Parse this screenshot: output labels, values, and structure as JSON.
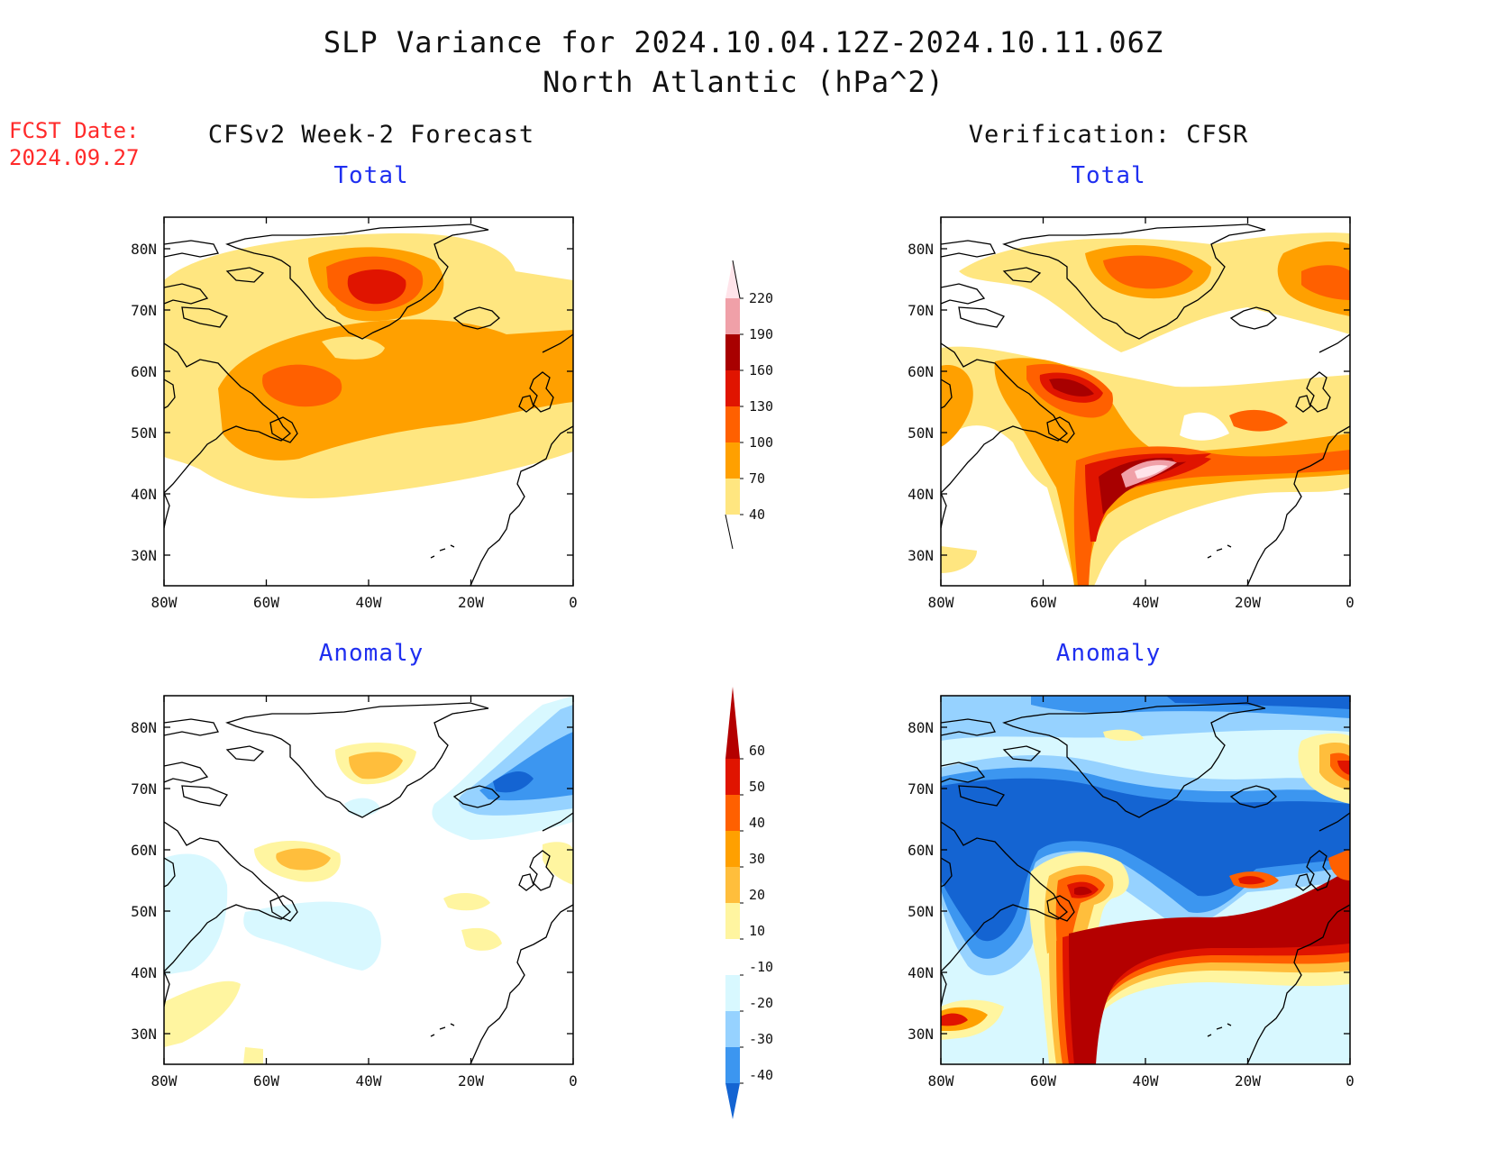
{
  "header": {
    "title": "SLP Variance for 2024.10.04.12Z-2024.10.11.06Z",
    "subtitle": "North Atlantic (hPa^2)"
  },
  "fcst": {
    "label": "FCST Date:",
    "date": "2024.09.27"
  },
  "columns": {
    "left": "CFSv2 Week-2 Forecast",
    "right": "Verification: CFSR"
  },
  "panels": {
    "forecast_total": "Total",
    "forecast_anomaly": "Anomaly",
    "verif_total": "Total",
    "verif_anomaly": "Anomaly"
  },
  "axes": {
    "lat_labels": [
      "80N",
      "70N",
      "60N",
      "50N",
      "40N",
      "30N"
    ],
    "lon_labels": [
      "80W",
      "60W",
      "40W",
      "20W",
      "0"
    ]
  },
  "colorbars": {
    "total": {
      "levels": [
        "40",
        "70",
        "100",
        "130",
        "160",
        "190",
        "220"
      ],
      "colors": [
        "#ffe680",
        "#ffa000",
        "#ff6000",
        "#e01400",
        "#a80000",
        "#f0a0a8",
        "#ffe4ea"
      ]
    },
    "anomaly": {
      "levels": [
        "60",
        "50",
        "40",
        "30",
        "20",
        "10",
        "-10",
        "-20",
        "-30",
        "-40"
      ],
      "colors": [
        "#b40000",
        "#e01400",
        "#ff6000",
        "#ffa000",
        "#ffbe3c",
        "#fff5a0",
        "#ffffff",
        "#d8f8ff",
        "#96d2ff",
        "#3c96f0",
        "#1464d2"
      ]
    }
  }
}
